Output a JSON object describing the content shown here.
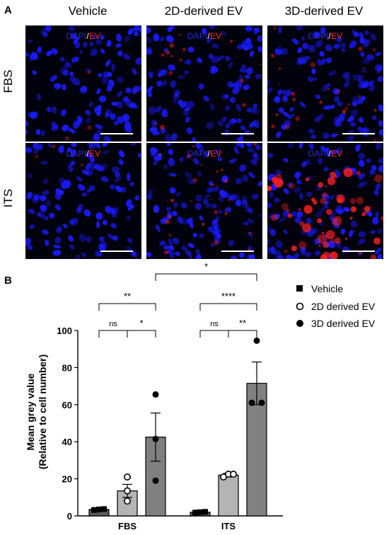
{
  "panel_a": {
    "letter": "A",
    "columns": [
      "Vehicle",
      "2D-derived EV",
      "3D-derived EV"
    ],
    "rows": [
      "FBS",
      "ITS"
    ],
    "stain_dapi": "DAPI",
    "stain_slash": "/",
    "stain_ev": "EV",
    "colors": {
      "nucleus": "#1a1aff",
      "ev": "#ff2020",
      "background": "#02020c"
    },
    "ev_intensity": [
      [
        0.05,
        0.25,
        0.4
      ],
      [
        0.05,
        0.45,
        1.0
      ]
    ]
  },
  "panel_b": {
    "letter": "B"
  },
  "chart_data": {
    "type": "bar",
    "categories": [
      "FBS",
      "ITS"
    ],
    "ylabel": "Mean grey value",
    "ylabel2": "(Relative to cell number)",
    "ylim": [
      0,
      100
    ],
    "yticks": [
      0,
      20,
      40,
      60,
      80,
      100
    ],
    "grid": false,
    "legend_position": "top-right",
    "series": [
      {
        "name": "Vehicle",
        "marker": "square",
        "bar_color": "#5a5a5a",
        "means": [
          3.5,
          2.0
        ],
        "errors": [
          0.5,
          0.4
        ],
        "points": [
          [
            3.2,
            3.5,
            3.7
          ],
          [
            1.8,
            2.0,
            2.2
          ]
        ]
      },
      {
        "name": "2D derived EV",
        "marker": "open-circle",
        "bar_color": "#b4b4b4",
        "means": [
          13.5,
          22.0
        ],
        "errors": [
          3.5,
          1.0
        ],
        "points": [
          [
            21.0,
            13.5,
            8.0
          ],
          [
            21.0,
            22.5,
            22.5
          ]
        ]
      },
      {
        "name": "3D derived EV",
        "marker": "filled-circle",
        "bar_color": "#808080",
        "means": [
          42.5,
          71.5
        ],
        "errors": [
          13.0,
          11.5
        ],
        "points": [
          [
            65.5,
            41.5,
            19.0
          ],
          [
            94.5,
            61.0,
            61.0
          ]
        ]
      }
    ],
    "annotations": [
      {
        "label": "ns",
        "from": [
          0,
          0
        ],
        "to": [
          0,
          1
        ],
        "level": 1
      },
      {
        "label": "*",
        "from": [
          0,
          1
        ],
        "to": [
          0,
          2
        ],
        "level": 1
      },
      {
        "label": "**",
        "from": [
          0,
          0
        ],
        "to": [
          0,
          2
        ],
        "level": 2
      },
      {
        "label": "ns",
        "from": [
          1,
          0
        ],
        "to": [
          1,
          1
        ],
        "level": 1
      },
      {
        "label": "**",
        "from": [
          1,
          1
        ],
        "to": [
          1,
          2
        ],
        "level": 1
      },
      {
        "label": "****",
        "from": [
          1,
          0
        ],
        "to": [
          1,
          2
        ],
        "level": 2
      },
      {
        "label": "*",
        "from": [
          0,
          2
        ],
        "to": [
          1,
          2
        ],
        "level": 3
      }
    ]
  }
}
